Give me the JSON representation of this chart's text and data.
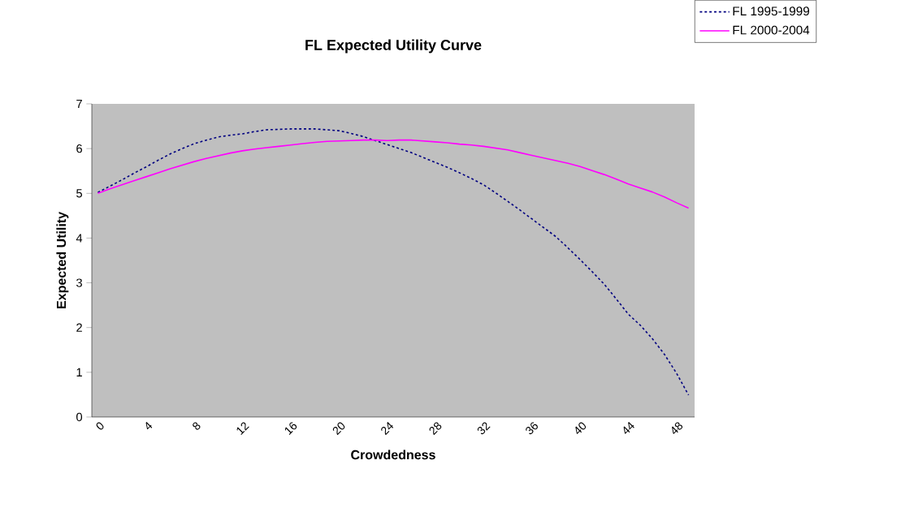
{
  "chart_data": {
    "type": "line",
    "title": "FL Expected Utility Curve",
    "xlabel": "Crowdedness",
    "ylabel": "Expected Utility",
    "categories": [
      "0",
      null,
      null,
      null,
      "4",
      null,
      null,
      null,
      "8",
      null,
      null,
      null,
      "12",
      null,
      null,
      null,
      "16",
      null,
      null,
      null,
      "20",
      null,
      null,
      null,
      "24",
      null,
      null,
      null,
      "28",
      null,
      null,
      null,
      "32",
      null,
      null,
      null,
      "36",
      null,
      null,
      null,
      "40",
      null,
      null,
      null,
      "44",
      null,
      null,
      null,
      "48",
      null
    ],
    "series": [
      {
        "name": "FL 1995-1999",
        "color": "#000080",
        "line_style": "dotted",
        "values": [
          5.02,
          5.16,
          5.3,
          5.45,
          5.59,
          5.74,
          5.88,
          6.0,
          6.11,
          6.19,
          6.26,
          6.3,
          6.33,
          6.38,
          6.42,
          6.43,
          6.44,
          6.44,
          6.44,
          6.42,
          6.4,
          6.34,
          6.27,
          6.18,
          6.09,
          6.0,
          5.91,
          5.8,
          5.69,
          5.58,
          5.46,
          5.33,
          5.19,
          5.01,
          4.82,
          4.63,
          4.43,
          4.23,
          4.03,
          3.78,
          3.52,
          3.25,
          2.97,
          2.64,
          2.3,
          2.05,
          1.75,
          1.4,
          0.98,
          0.49
        ]
      },
      {
        "name": "FL 2000-2004",
        "color": "#ff00ff",
        "line_style": "solid",
        "values": [
          5.0,
          5.1,
          5.19,
          5.28,
          5.37,
          5.46,
          5.55,
          5.63,
          5.71,
          5.78,
          5.84,
          5.9,
          5.95,
          5.99,
          6.02,
          6.05,
          6.08,
          6.11,
          6.14,
          6.16,
          6.17,
          6.18,
          6.19,
          6.19,
          6.18,
          6.19,
          6.19,
          6.17,
          6.15,
          6.13,
          6.1,
          6.08,
          6.05,
          6.01,
          5.97,
          5.91,
          5.85,
          5.79,
          5.73,
          5.67,
          5.6,
          5.51,
          5.42,
          5.32,
          5.21,
          5.12,
          5.03,
          4.92,
          4.79,
          4.67
        ]
      }
    ],
    "ylim": [
      0,
      7
    ],
    "yticks": [
      0,
      1,
      2,
      3,
      4,
      5,
      6,
      7
    ],
    "grid": false,
    "legend": "top right"
  }
}
